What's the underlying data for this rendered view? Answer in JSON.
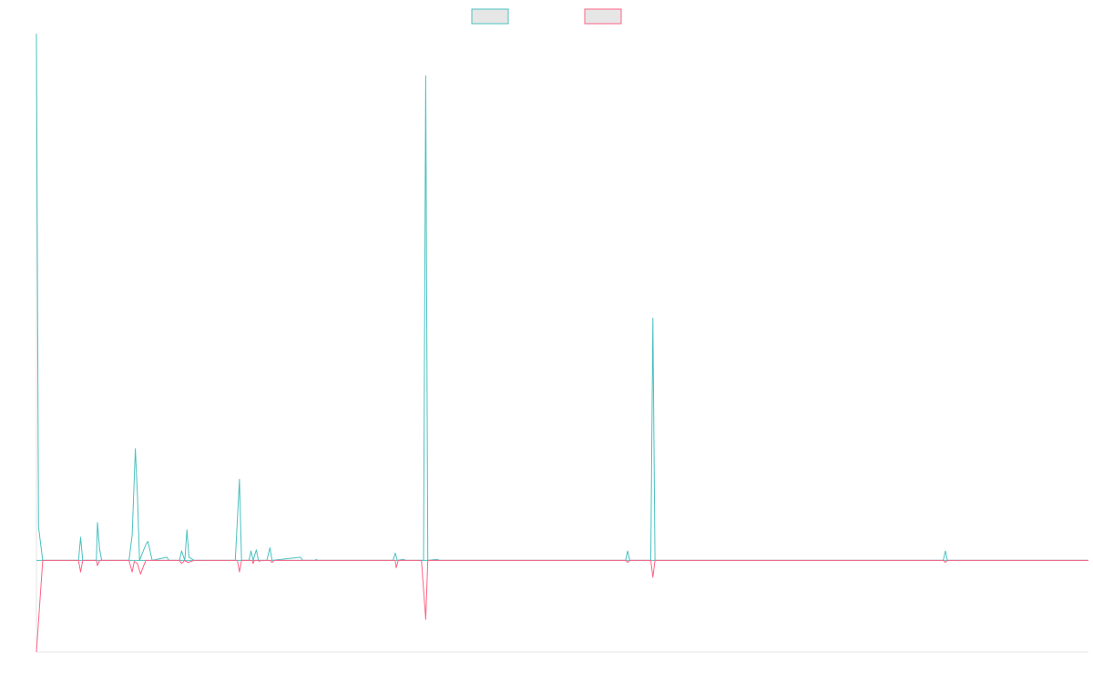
{
  "chart_data": {
    "type": "line",
    "title": "",
    "xlabel": "",
    "ylabel": "",
    "legend_position": "top-center",
    "grid": false,
    "xlim": [
      0,
      1000
    ],
    "ylim": [
      -87,
      500
    ],
    "series": [
      {
        "name": "",
        "color": "#4bc0c0",
        "points": [
          [
            0,
            500
          ],
          [
            2,
            32
          ],
          [
            6,
            0
          ],
          [
            40,
            0
          ],
          [
            42,
            22
          ],
          [
            44,
            0
          ],
          [
            57,
            0
          ],
          [
            58,
            36
          ],
          [
            60,
            11
          ],
          [
            62,
            0
          ],
          [
            88,
            0
          ],
          [
            91,
            24
          ],
          [
            94,
            106
          ],
          [
            96,
            62
          ],
          [
            98,
            0
          ],
          [
            104,
            15
          ],
          [
            106,
            18
          ],
          [
            110,
            0
          ],
          [
            124,
            3
          ],
          [
            126,
            0
          ],
          [
            136,
            0
          ],
          [
            138,
            9
          ],
          [
            141,
            0
          ],
          [
            143,
            29
          ],
          [
            145,
            3
          ],
          [
            150,
            0
          ],
          [
            189,
            0
          ],
          [
            193,
            77
          ],
          [
            195,
            0
          ],
          [
            202,
            0
          ],
          [
            204,
            9
          ],
          [
            206,
            0
          ],
          [
            209,
            10
          ],
          [
            211,
            0
          ],
          [
            219,
            0
          ],
          [
            222,
            12
          ],
          [
            224,
            0
          ],
          [
            251,
            3
          ],
          [
            253,
            0
          ],
          [
            265,
            0
          ],
          [
            266,
            1
          ],
          [
            267,
            0
          ],
          [
            339,
            0
          ],
          [
            341,
            7
          ],
          [
            343,
            0
          ],
          [
            349,
            1
          ],
          [
            351,
            0
          ],
          [
            368,
            0
          ],
          [
            370,
            460
          ],
          [
            372,
            0
          ],
          [
            381,
            1
          ],
          [
            383,
            0
          ],
          [
            560,
            0
          ],
          [
            562,
            9
          ],
          [
            564,
            0
          ],
          [
            584,
            0
          ],
          [
            586,
            230
          ],
          [
            588,
            0
          ],
          [
            862,
            0
          ],
          [
            864,
            9
          ],
          [
            866,
            0
          ],
          [
            1000,
            0
          ]
        ]
      },
      {
        "name": "",
        "color": "#ff6384",
        "points": [
          [
            0,
            -87
          ],
          [
            6,
            0
          ],
          [
            40,
            0
          ],
          [
            42,
            -11
          ],
          [
            44,
            0
          ],
          [
            57,
            0
          ],
          [
            58,
            -5
          ],
          [
            60,
            0
          ],
          [
            88,
            0
          ],
          [
            91,
            -11
          ],
          [
            93,
            -1
          ],
          [
            96,
            -3
          ],
          [
            99,
            -13
          ],
          [
            102,
            -5
          ],
          [
            104,
            0
          ],
          [
            136,
            0
          ],
          [
            138,
            -3
          ],
          [
            141,
            0
          ],
          [
            144,
            -2
          ],
          [
            150,
            0
          ],
          [
            191,
            0
          ],
          [
            193,
            -11
          ],
          [
            195,
            0
          ],
          [
            205,
            0
          ],
          [
            206,
            -3
          ],
          [
            207,
            0
          ],
          [
            211,
            0
          ],
          [
            212,
            -1
          ],
          [
            213,
            0
          ],
          [
            222,
            0
          ],
          [
            224,
            -2
          ],
          [
            226,
            0
          ],
          [
            341,
            0
          ],
          [
            342,
            -7
          ],
          [
            344,
            0
          ],
          [
            366,
            0
          ],
          [
            370,
            -56
          ],
          [
            372,
            0
          ],
          [
            560,
            0
          ],
          [
            562,
            -2
          ],
          [
            564,
            0
          ],
          [
            584,
            0
          ],
          [
            586,
            -16
          ],
          [
            588,
            0
          ],
          [
            862,
            0
          ],
          [
            864,
            -2
          ],
          [
            866,
            0
          ],
          [
            1000,
            0
          ]
        ]
      }
    ]
  }
}
